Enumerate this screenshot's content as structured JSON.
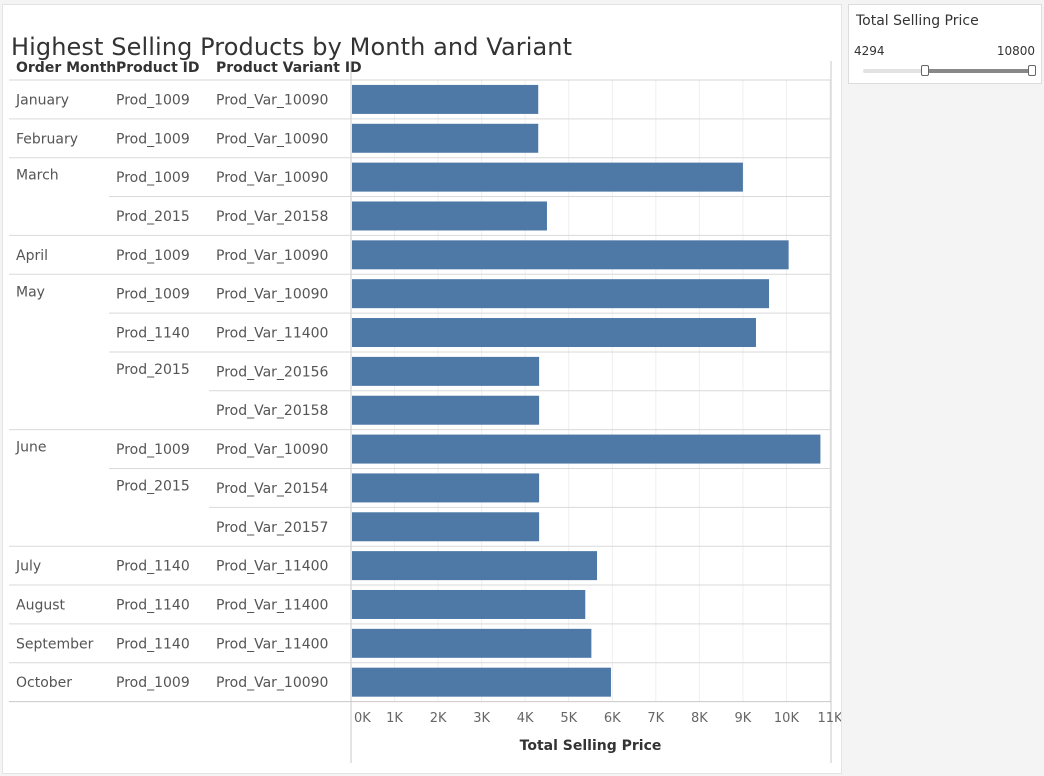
{
  "title": "Highest Selling Products by Month and Variant",
  "headers": {
    "month": "Order Month",
    "product": "Product ID",
    "variant": "Product Variant ID"
  },
  "filter": {
    "title": "Total Selling Price",
    "min": 4294,
    "max": 10800,
    "min_label": "4294",
    "max_label": "10800"
  },
  "colors": {
    "bar": "#4e79a7"
  },
  "chart_data": {
    "type": "bar",
    "orientation": "horizontal",
    "xlabel": "Total Selling Price",
    "xlim": [
      0,
      11000
    ],
    "x_ticks": [
      "0K",
      "1K",
      "2K",
      "3K",
      "4K",
      "5K",
      "6K",
      "7K",
      "8K",
      "9K",
      "10K",
      "11K"
    ],
    "grid": "vertical",
    "rows": [
      {
        "month": "January",
        "product": "Prod_1009",
        "variant": "Prod_Var_10090",
        "value": 4300
      },
      {
        "month": "February",
        "product": "Prod_1009",
        "variant": "Prod_Var_10090",
        "value": 4300
      },
      {
        "month": "March",
        "product": "Prod_1009",
        "variant": "Prod_Var_10090",
        "value": 9000
      },
      {
        "month": "",
        "product": "Prod_2015",
        "variant": "Prod_Var_20158",
        "value": 4500
      },
      {
        "month": "April",
        "product": "Prod_1009",
        "variant": "Prod_Var_10090",
        "value": 10050
      },
      {
        "month": "May",
        "product": "Prod_1009",
        "variant": "Prod_Var_10090",
        "value": 9600
      },
      {
        "month": "",
        "product": "Prod_1140",
        "variant": "Prod_Var_11400",
        "value": 9300
      },
      {
        "month": "",
        "product": "Prod_2015",
        "variant": "Prod_Var_20156",
        "value": 4320
      },
      {
        "month": "",
        "product": "",
        "variant": "Prod_Var_20158",
        "value": 4320
      },
      {
        "month": "June",
        "product": "Prod_1009",
        "variant": "Prod_Var_10090",
        "value": 10780
      },
      {
        "month": "",
        "product": "Prod_2015",
        "variant": "Prod_Var_20154",
        "value": 4320
      },
      {
        "month": "",
        "product": "",
        "variant": "Prod_Var_20157",
        "value": 4320
      },
      {
        "month": "July",
        "product": "Prod_1140",
        "variant": "Prod_Var_11400",
        "value": 5650
      },
      {
        "month": "August",
        "product": "Prod_1140",
        "variant": "Prod_Var_11400",
        "value": 5380
      },
      {
        "month": "September",
        "product": "Prod_1140",
        "variant": "Prod_Var_11400",
        "value": 5520
      },
      {
        "month": "October",
        "product": "Prod_1009",
        "variant": "Prod_Var_10090",
        "value": 5970
      }
    ]
  }
}
